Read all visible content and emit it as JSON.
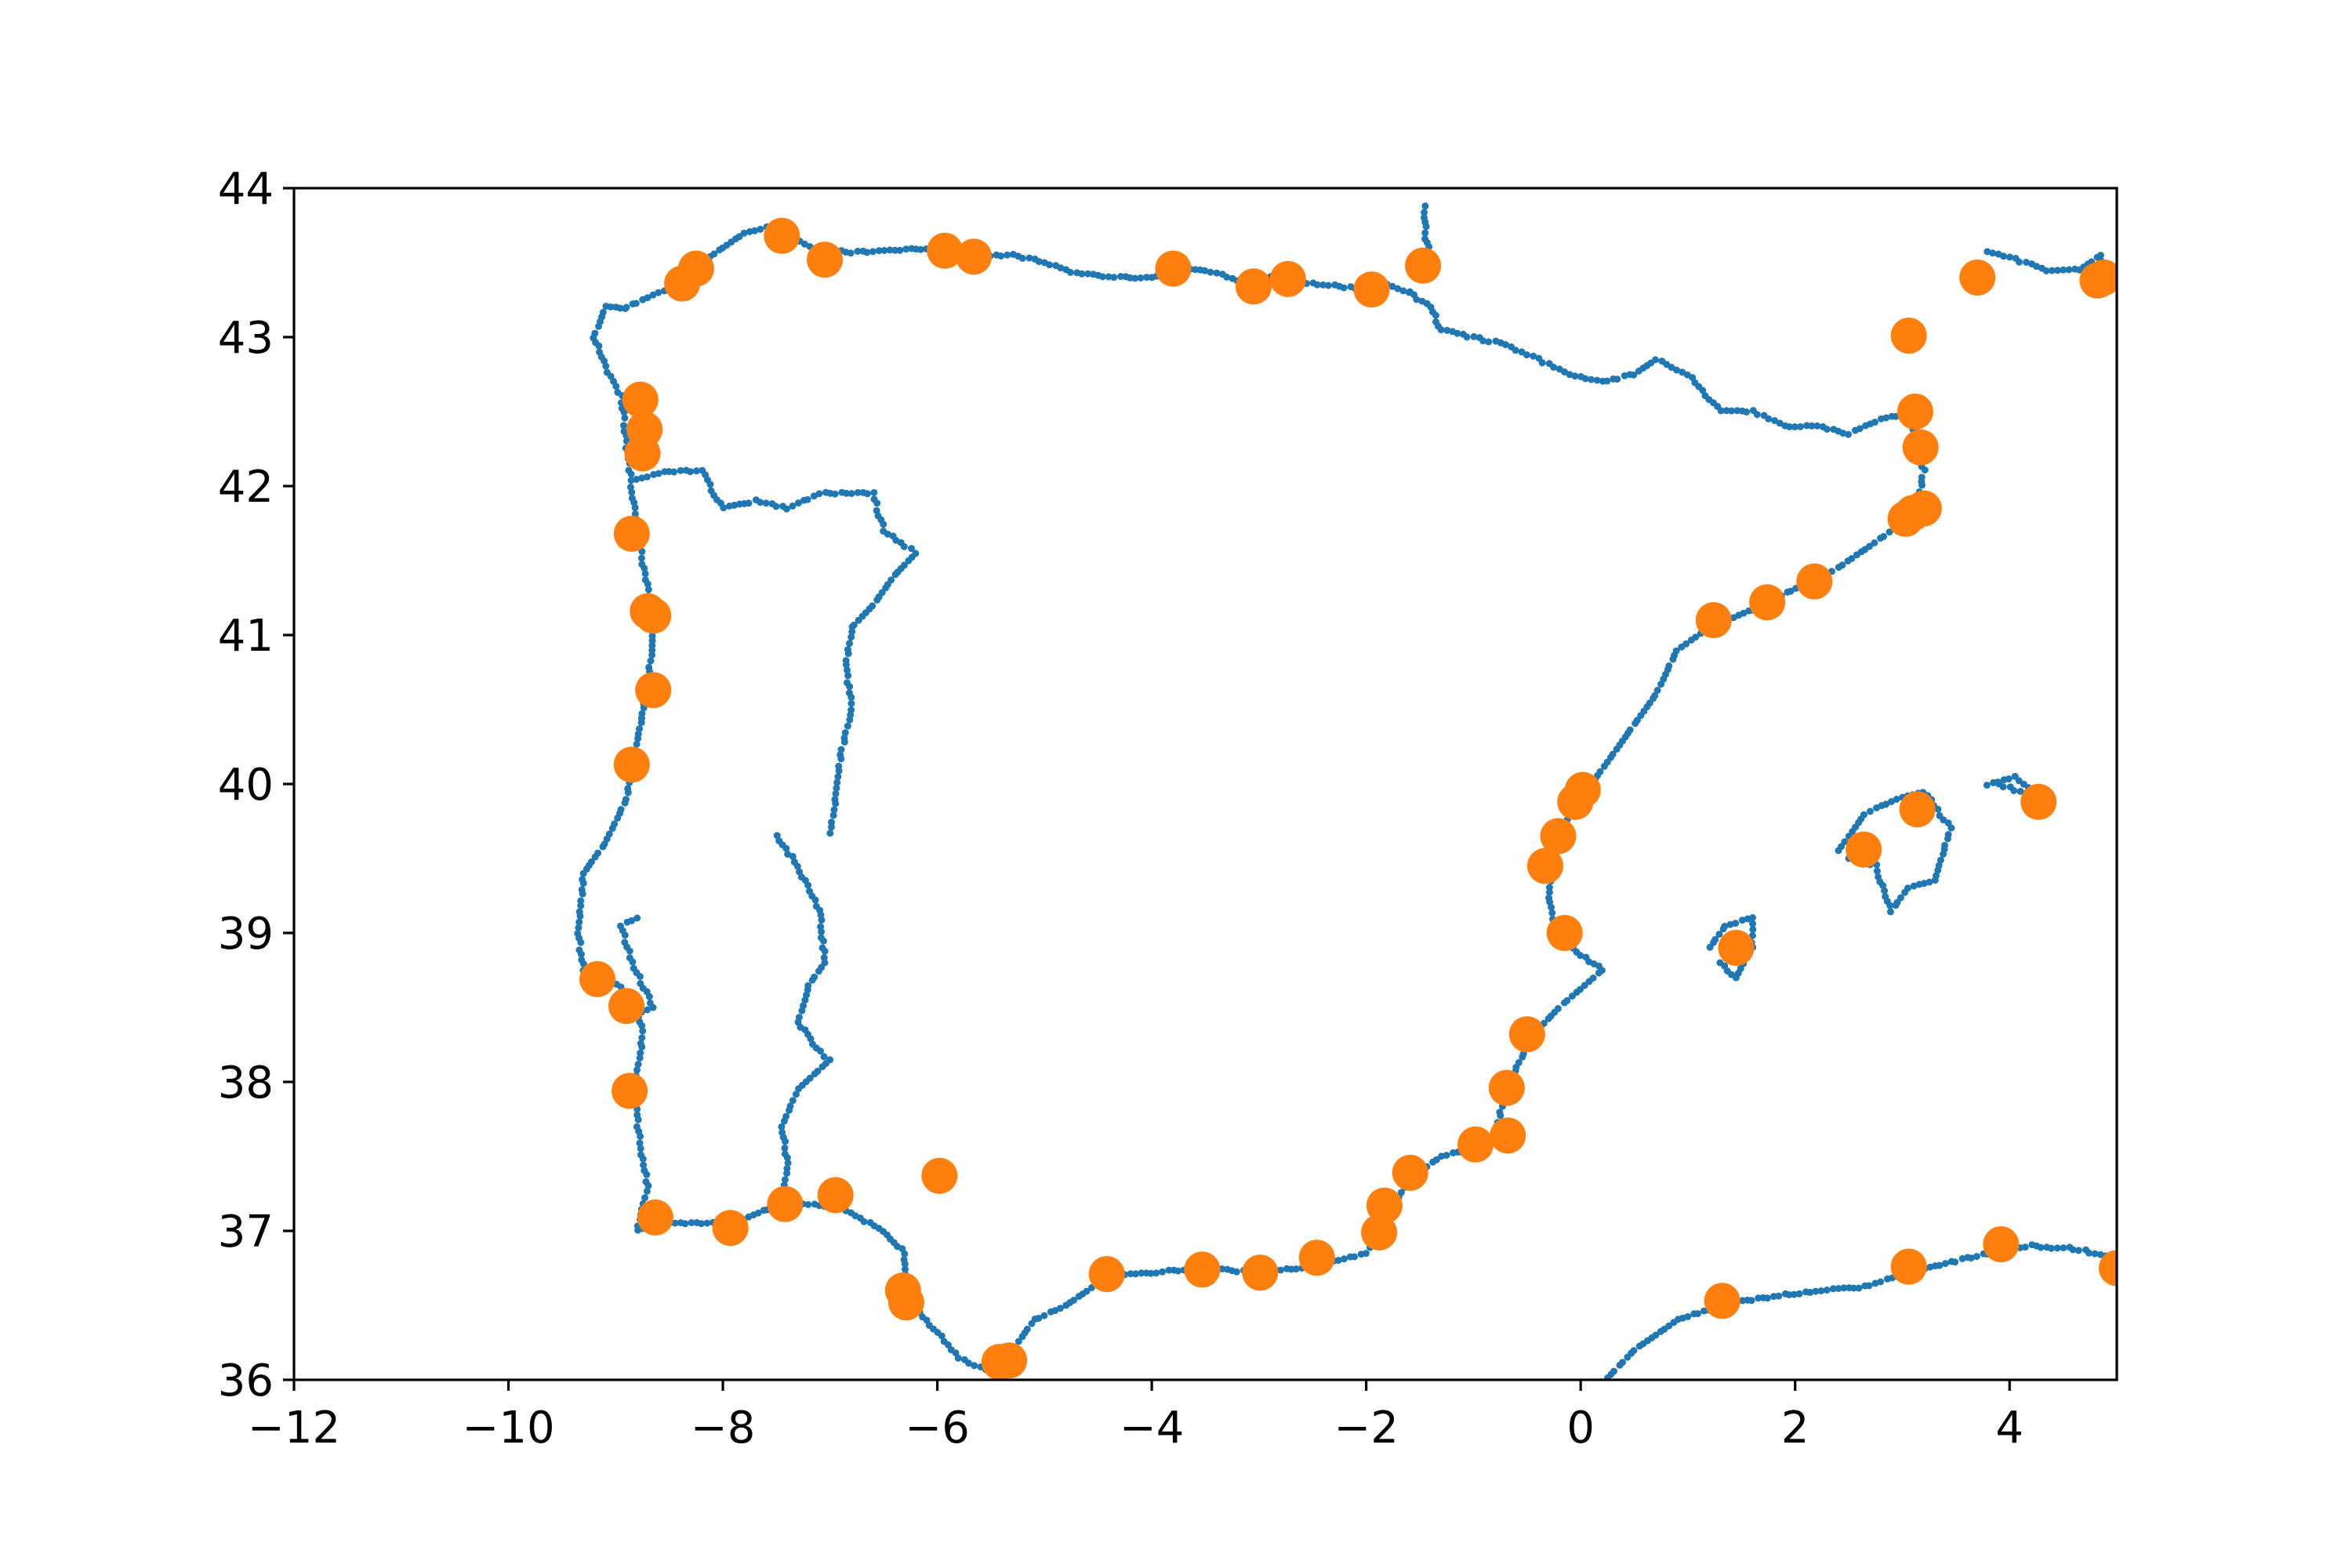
{
  "chart_data": {
    "type": "scatter",
    "title": "",
    "xlabel": "",
    "ylabel": "",
    "xlim": [
      -12,
      5
    ],
    "ylim": [
      36,
      44
    ],
    "grid": false,
    "legend": "none",
    "x_ticks": [
      "−12",
      "−10",
      "−8",
      "−6",
      "−4",
      "−2",
      "0",
      "2",
      "4"
    ],
    "x_tick_values": [
      -12,
      -10,
      -8,
      -6,
      -4,
      -2,
      0,
      2,
      4
    ],
    "y_ticks": [
      "36",
      "37",
      "38",
      "39",
      "40",
      "41",
      "42",
      "43",
      "44"
    ],
    "y_tick_values": [
      36,
      37,
      38,
      39,
      40,
      41,
      42,
      43,
      44
    ],
    "series": [
      {
        "color": "#1f77b4",
        "marker": "small-dot",
        "segments": [
          [
            [
              -8.9,
              43.2
            ],
            [
              -8.6,
              43.3
            ],
            [
              -8.3,
              43.35
            ],
            [
              -8.2,
              43.5
            ],
            [
              -8.0,
              43.6
            ],
            [
              -7.8,
              43.7
            ],
            [
              -7.5,
              43.75
            ],
            [
              -7.2,
              43.6
            ],
            [
              -6.8,
              43.57
            ],
            [
              -6.4,
              43.58
            ],
            [
              -6.0,
              43.6
            ],
            [
              -5.6,
              43.55
            ],
            [
              -5.3,
              43.55
            ],
            [
              -5.0,
              43.5
            ],
            [
              -4.7,
              43.43
            ],
            [
              -4.3,
              43.4
            ],
            [
              -4.0,
              43.4
            ],
            [
              -3.8,
              43.45
            ],
            [
              -3.5,
              43.45
            ],
            [
              -3.2,
              43.38
            ],
            [
              -2.9,
              43.4
            ],
            [
              -2.5,
              43.36
            ],
            [
              -2.1,
              43.33
            ],
            [
              -1.8,
              43.36
            ],
            [
              -1.6,
              43.3
            ]
          ],
          [
            [
              -1.6,
              43.3
            ],
            [
              -1.4,
              43.2
            ],
            [
              -1.3,
              43.05
            ],
            [
              -1.0,
              43.0
            ],
            [
              -0.7,
              42.95
            ],
            [
              -0.4,
              42.85
            ],
            [
              -0.1,
              42.75
            ],
            [
              0.2,
              42.7
            ],
            [
              0.5,
              42.75
            ],
            [
              0.7,
              42.85
            ],
            [
              1.0,
              42.75
            ],
            [
              1.3,
              42.5
            ],
            [
              1.6,
              42.5
            ],
            [
              1.9,
              42.4
            ],
            [
              2.2,
              42.4
            ],
            [
              2.5,
              42.35
            ],
            [
              2.8,
              42.45
            ],
            [
              3.1,
              42.5
            ]
          ],
          [
            [
              3.1,
              42.5
            ],
            [
              3.1,
              42.3
            ],
            [
              3.2,
              42.1
            ],
            [
              3.15,
              41.9
            ],
            [
              3.0,
              41.75
            ],
            [
              2.7,
              41.6
            ],
            [
              2.4,
              41.45
            ],
            [
              2.1,
              41.35
            ],
            [
              1.7,
              41.2
            ],
            [
              1.2,
              41.05
            ],
            [
              0.9,
              40.9
            ],
            [
              0.7,
              40.6
            ],
            [
              0.5,
              40.4
            ],
            [
              0.3,
              40.2
            ],
            [
              0.1,
              40.0
            ],
            [
              -0.1,
              39.8
            ],
            [
              -0.25,
              39.5
            ],
            [
              -0.3,
              39.2
            ],
            [
              -0.2,
              39.0
            ],
            [
              0.0,
              38.85
            ],
            [
              0.2,
              38.75
            ],
            [
              -0.2,
              38.5
            ],
            [
              -0.4,
              38.35
            ],
            [
              -0.6,
              38.1
            ],
            [
              -0.75,
              37.8
            ],
            [
              -0.8,
              37.6
            ],
            [
              -1.0,
              37.55
            ],
            [
              -1.3,
              37.5
            ],
            [
              -1.6,
              37.35
            ],
            [
              -1.8,
              37.1
            ],
            [
              -2.0,
              36.85
            ],
            [
              -2.3,
              36.8
            ],
            [
              -2.6,
              36.75
            ],
            [
              -3.0,
              36.72
            ],
            [
              -3.5,
              36.75
            ],
            [
              -4.0,
              36.72
            ],
            [
              -4.4,
              36.7
            ],
            [
              -4.8,
              36.5
            ],
            [
              -5.1,
              36.4
            ],
            [
              -5.3,
              36.2
            ],
            [
              -5.5,
              36.05
            ],
            [
              -5.8,
              36.15
            ],
            [
              -6.1,
              36.4
            ],
            [
              -6.3,
              36.6
            ],
            [
              -6.3,
              36.85
            ],
            [
              -6.5,
              37.0
            ],
            [
              -6.9,
              37.15
            ],
            [
              -7.4,
              37.2
            ],
            [
              -7.9,
              37.05
            ],
            [
              -8.3,
              37.05
            ],
            [
              -8.6,
              37.05
            ],
            [
              -8.8,
              37.0
            ],
            [
              -8.7,
              37.3
            ],
            [
              -8.8,
              37.7
            ],
            [
              -8.8,
              38.05
            ],
            [
              -8.75,
              38.3
            ],
            [
              -8.8,
              38.55
            ],
            [
              -9.0,
              38.65
            ],
            [
              -9.3,
              38.75
            ],
            [
              -9.35,
              39.0
            ],
            [
              -9.3,
              39.4
            ],
            [
              -9.1,
              39.6
            ],
            [
              -8.9,
              39.9
            ],
            [
              -8.8,
              40.3
            ],
            [
              -8.7,
              40.65
            ],
            [
              -8.65,
              41.0
            ],
            [
              -8.7,
              41.3
            ],
            [
              -8.8,
              41.7
            ],
            [
              -8.85,
              42.0
            ],
            [
              -8.9,
              42.3
            ],
            [
              -8.95,
              42.6
            ],
            [
              -9.1,
              42.8
            ],
            [
              -9.2,
              43.0
            ],
            [
              -9.1,
              43.2
            ],
            [
              -8.9,
              43.2
            ]
          ],
          [
            [
              -8.8,
              42.05
            ],
            [
              -8.5,
              42.1
            ],
            [
              -8.2,
              42.1
            ],
            [
              -8.0,
              41.85
            ],
            [
              -7.7,
              41.9
            ],
            [
              -7.4,
              41.85
            ],
            [
              -7.1,
              41.95
            ],
            [
              -6.8,
              41.95
            ],
            [
              -6.6,
              41.95
            ],
            [
              -6.5,
              41.7
            ],
            [
              -6.3,
              41.6
            ],
            [
              -6.2,
              41.55
            ],
            [
              -6.4,
              41.4
            ],
            [
              -6.6,
              41.2
            ],
            [
              -6.8,
              41.05
            ],
            [
              -6.85,
              40.8
            ],
            [
              -6.8,
              40.5
            ],
            [
              -6.9,
              40.2
            ],
            [
              -6.95,
              39.9
            ],
            [
              -7.0,
              39.67
            ]
          ],
          [
            [
              -7.5,
              39.65
            ],
            [
              -7.3,
              39.45
            ],
            [
              -7.1,
              39.15
            ],
            [
              -7.05,
              38.8
            ],
            [
              -7.2,
              38.65
            ],
            [
              -7.3,
              38.4
            ],
            [
              -7.1,
              38.2
            ],
            [
              -7.0,
              38.15
            ],
            [
              -7.3,
              37.95
            ],
            [
              -7.45,
              37.7
            ],
            [
              -7.4,
              37.45
            ],
            [
              -7.45,
              37.2
            ]
          ],
          [
            [
              2.4,
              39.55
            ],
            [
              2.65,
              39.8
            ],
            [
              2.95,
              39.9
            ],
            [
              3.2,
              39.95
            ],
            [
              3.45,
              39.7
            ],
            [
              3.3,
              39.35
            ],
            [
              3.05,
              39.3
            ],
            [
              2.9,
              39.15
            ],
            [
              2.75,
              39.45
            ],
            [
              2.5,
              39.5
            ]
          ],
          [
            [
              3.8,
              40.0
            ],
            [
              4.05,
              40.05
            ],
            [
              4.3,
              39.9
            ],
            [
              3.9,
              40.0
            ]
          ],
          [
            [
              1.2,
              38.9
            ],
            [
              1.35,
              39.05
            ],
            [
              1.6,
              39.1
            ],
            [
              1.6,
              38.9
            ],
            [
              1.45,
              38.7
            ],
            [
              1.3,
              38.8
            ]
          ],
          [
            [
              0.1,
              35.9
            ],
            [
              0.5,
              36.2
            ],
            [
              0.9,
              36.4
            ],
            [
              1.3,
              36.5
            ],
            [
              1.7,
              36.55
            ],
            [
              2.2,
              36.6
            ],
            [
              2.6,
              36.62
            ],
            [
              3.0,
              36.7
            ],
            [
              3.4,
              36.78
            ],
            [
              3.8,
              36.85
            ],
            [
              4.2,
              36.9
            ],
            [
              4.6,
              36.88
            ],
            [
              5.0,
              36.82
            ]
          ],
          [
            [
              -8.85,
              38.45
            ],
            [
              -8.65,
              38.5
            ],
            [
              -8.85,
              38.8
            ],
            [
              -8.95,
              39.05
            ],
            [
              -8.8,
              39.1
            ]
          ],
          [
            [
              3.8,
              43.58
            ],
            [
              3.9,
              43.56
            ],
            [
              4.35,
              43.45
            ],
            [
              4.65,
              43.45
            ],
            [
              4.85,
              43.55
            ],
            [
              4.9,
              43.3
            ]
          ],
          [
            [
              -1.4,
              43.5
            ],
            [
              -1.45,
              43.7
            ],
            [
              -1.45,
              43.88
            ]
          ]
        ]
      },
      {
        "color": "#ff7f0e",
        "marker": "large-dot",
        "points": [
          [
            -7.45,
            43.68
          ],
          [
            -7.05,
            43.52
          ],
          [
            -8.25,
            43.46
          ],
          [
            -8.38,
            43.36
          ],
          [
            -5.93,
            43.58
          ],
          [
            -5.66,
            43.54
          ],
          [
            -3.8,
            43.46
          ],
          [
            -3.05,
            43.34
          ],
          [
            -2.73,
            43.39
          ],
          [
            -1.95,
            43.32
          ],
          [
            -1.47,
            43.48
          ],
          [
            -8.77,
            42.58
          ],
          [
            -8.73,
            42.38
          ],
          [
            -8.75,
            42.22
          ],
          [
            -8.85,
            41.68
          ],
          [
            -8.7,
            41.16
          ],
          [
            -8.65,
            41.13
          ],
          [
            -8.65,
            40.63
          ],
          [
            -8.85,
            40.13
          ],
          [
            -9.17,
            38.69
          ],
          [
            -8.9,
            38.51
          ],
          [
            -8.87,
            37.94
          ],
          [
            -8.63,
            37.09
          ],
          [
            -7.93,
            37.02
          ],
          [
            -7.42,
            37.18
          ],
          [
            -6.95,
            37.24
          ],
          [
            -5.98,
            37.37
          ],
          [
            -6.32,
            36.6
          ],
          [
            -6.29,
            36.52
          ],
          [
            -5.42,
            36.12
          ],
          [
            -5.33,
            36.13
          ],
          [
            -4.42,
            36.71
          ],
          [
            -3.53,
            36.74
          ],
          [
            -2.99,
            36.72
          ],
          [
            -2.46,
            36.82
          ],
          [
            -1.88,
            36.99
          ],
          [
            -1.83,
            37.17
          ],
          [
            -1.59,
            37.39
          ],
          [
            -0.98,
            37.58
          ],
          [
            -0.68,
            37.64
          ],
          [
            -0.69,
            37.96
          ],
          [
            -0.5,
            38.32
          ],
          [
            -0.15,
            39.0
          ],
          [
            -0.33,
            39.45
          ],
          [
            -0.21,
            39.65
          ],
          [
            -0.05,
            39.88
          ],
          [
            0.02,
            39.96
          ],
          [
            1.24,
            41.1
          ],
          [
            1.74,
            41.22
          ],
          [
            2.18,
            41.36
          ],
          [
            3.03,
            41.78
          ],
          [
            3.1,
            41.82
          ],
          [
            3.2,
            41.85
          ],
          [
            3.17,
            42.26
          ],
          [
            3.12,
            42.5
          ],
          [
            3.06,
            43.01
          ],
          [
            3.7,
            43.4
          ],
          [
            4.82,
            43.38
          ],
          [
            4.88,
            43.4
          ],
          [
            3.14,
            39.83
          ],
          [
            2.64,
            39.56
          ],
          [
            4.27,
            39.88
          ],
          [
            1.45,
            38.9
          ],
          [
            1.32,
            36.53
          ],
          [
            3.06,
            36.76
          ],
          [
            3.92,
            36.91
          ],
          [
            5.0,
            36.75
          ]
        ]
      }
    ]
  }
}
